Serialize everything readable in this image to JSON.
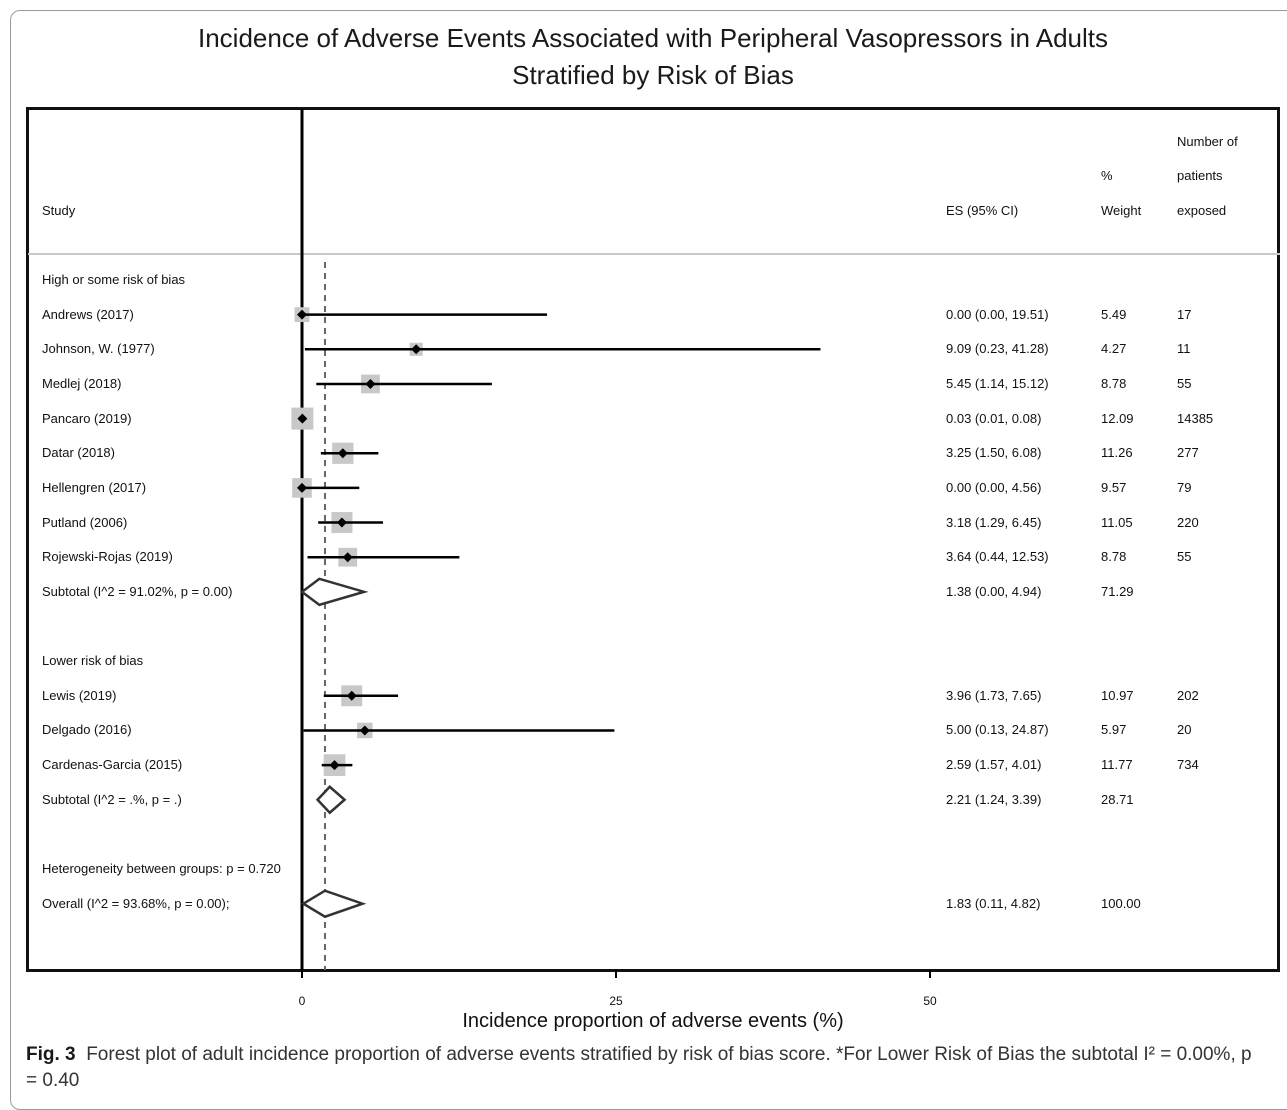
{
  "chart_data": {
    "type": "forest",
    "title_line1": "Incidence of Adverse Events Associated with Peripheral Vasopressors in Adults",
    "title_line2": "Stratified by Risk of Bias",
    "xlabel": "Incidence proportion of adverse events (%)",
    "xticks": [
      0,
      25,
      50
    ],
    "reference_line": 1.83,
    "headers": {
      "study": "Study",
      "es": "ES (95% CI)",
      "weight_line1": "%",
      "weight_line2": "Weight",
      "patients_line1": "Number of",
      "patients_line2": "patients",
      "patients_line3": "exposed"
    },
    "rows": [
      {
        "kind": "group",
        "label": "High or some risk of bias"
      },
      {
        "kind": "study",
        "label": "Andrews (2017)",
        "es": 0.0,
        "lo": 0.0,
        "hi": 19.51,
        "es_text": "0.00 (0.00, 19.51)",
        "weight": "5.49",
        "n": "17"
      },
      {
        "kind": "study",
        "label": "Johnson, W. (1977)",
        "es": 9.09,
        "lo": 0.23,
        "hi": 41.28,
        "es_text": "9.09 (0.23, 41.28)",
        "weight": "4.27",
        "n": "11"
      },
      {
        "kind": "study",
        "label": "Medlej (2018)",
        "es": 5.45,
        "lo": 1.14,
        "hi": 15.12,
        "es_text": "5.45 (1.14, 15.12)",
        "weight": "8.78",
        "n": "55"
      },
      {
        "kind": "study",
        "label": "Pancaro (2019)",
        "es": 0.03,
        "lo": 0.01,
        "hi": 0.08,
        "es_text": "0.03 (0.01, 0.08)",
        "weight": "12.09",
        "n": "14385"
      },
      {
        "kind": "study",
        "label": "Datar (2018)",
        "es": 3.25,
        "lo": 1.5,
        "hi": 6.08,
        "es_text": "3.25 (1.50, 6.08)",
        "weight": "11.26",
        "n": "277"
      },
      {
        "kind": "study",
        "label": "Hellengren (2017)",
        "es": 0.0,
        "lo": 0.0,
        "hi": 4.56,
        "es_text": "0.00 (0.00, 4.56)",
        "weight": "9.57",
        "n": "79"
      },
      {
        "kind": "study",
        "label": "Putland (2006)",
        "es": 3.18,
        "lo": 1.29,
        "hi": 6.45,
        "es_text": "3.18 (1.29, 6.45)",
        "weight": "11.05",
        "n": "220"
      },
      {
        "kind": "study",
        "label": "Rojewski-Rojas (2019)",
        "es": 3.64,
        "lo": 0.44,
        "hi": 12.53,
        "es_text": "3.64 (0.44, 12.53)",
        "weight": "8.78",
        "n": "55"
      },
      {
        "kind": "subtotal",
        "label": "Subtotal  (I^2 = 91.02%, p = 0.00)",
        "es": 1.38,
        "lo": 0.0,
        "hi": 4.94,
        "es_text": "1.38 (0.00, 4.94)",
        "weight": "71.29",
        "n": ""
      },
      {
        "kind": "blank"
      },
      {
        "kind": "group",
        "label": "Lower risk of bias"
      },
      {
        "kind": "study",
        "label": "Lewis (2019)",
        "es": 3.96,
        "lo": 1.73,
        "hi": 7.65,
        "es_text": "3.96 (1.73, 7.65)",
        "weight": "10.97",
        "n": "202"
      },
      {
        "kind": "study",
        "label": "Delgado (2016)",
        "es": 5.0,
        "lo": 0.13,
        "hi": 24.87,
        "es_text": "5.00 (0.13, 24.87)",
        "weight": "5.97",
        "n": "20"
      },
      {
        "kind": "study",
        "label": "Cardenas-Garcia (2015)",
        "es": 2.59,
        "lo": 1.57,
        "hi": 4.01,
        "es_text": "2.59 (1.57, 4.01)",
        "weight": "11.77",
        "n": "734"
      },
      {
        "kind": "subtotal",
        "label": "Subtotal  (I^2 = .%, p = .)",
        "es": 2.21,
        "lo": 1.24,
        "hi": 3.39,
        "es_text": "2.21 (1.24, 3.39)",
        "weight": "28.71",
        "n": ""
      },
      {
        "kind": "blank"
      },
      {
        "kind": "group",
        "label": "Heterogeneity between groups: p = 0.720"
      },
      {
        "kind": "subtotal",
        "label": "Overall  (I^2 = 93.68%, p = 0.00);",
        "es": 1.83,
        "lo": 0.11,
        "hi": 4.82,
        "es_text": "1.83 (0.11, 4.82)",
        "weight": "100.00",
        "n": ""
      }
    ]
  },
  "caption": {
    "fig_label": "Fig. 3",
    "text": "Forest plot of adult incidence proportion of adverse events stratified by risk of bias score. *For Lower Risk of Bias the subtotal I² = 0.00%, p = 0.40"
  }
}
